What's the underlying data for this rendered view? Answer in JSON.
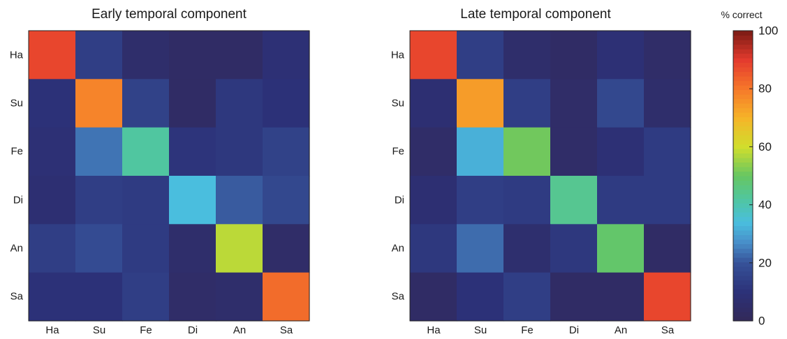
{
  "chart_data": [
    {
      "type": "heatmap",
      "title": "Early temporal component",
      "xlabel": "",
      "ylabel": "",
      "rows": [
        "Ha",
        "Su",
        "Fe",
        "Di",
        "An",
        "Sa"
      ],
      "columns": [
        "Ha",
        "Su",
        "Fe",
        "Di",
        "An",
        "Sa"
      ],
      "values": [
        [
          88,
          14,
          6,
          4,
          4,
          9
        ],
        [
          10,
          78,
          15,
          4,
          12,
          10
        ],
        [
          9,
          24,
          42,
          11,
          12,
          15
        ],
        [
          8,
          14,
          13,
          34,
          21,
          17
        ],
        [
          14,
          18,
          13,
          6,
          58,
          5
        ],
        [
          10,
          10,
          14,
          5,
          6,
          82
        ]
      ],
      "value_range": [
        0,
        100
      ]
    },
    {
      "type": "heatmap",
      "title": "Late temporal component",
      "xlabel": "",
      "ylabel": "",
      "rows": [
        "Ha",
        "Su",
        "Fe",
        "Di",
        "An",
        "Sa"
      ],
      "columns": [
        "Ha",
        "Su",
        "Fe",
        "Di",
        "An",
        "Sa"
      ],
      "values": [
        [
          88,
          14,
          6,
          4,
          9,
          5
        ],
        [
          8,
          74,
          14,
          5,
          17,
          6
        ],
        [
          5,
          32,
          51,
          5,
          9,
          13
        ],
        [
          8,
          14,
          13,
          44,
          13,
          13
        ],
        [
          12,
          23,
          7,
          12,
          49,
          4
        ],
        [
          4,
          10,
          14,
          4,
          4,
          88
        ]
      ],
      "value_range": [
        0,
        100
      ]
    }
  ],
  "colorbar": {
    "label": "% correct",
    "min": 0,
    "max": 100,
    "ticks": [
      0,
      20,
      40,
      60,
      80,
      100
    ],
    "colormap": "jet-like"
  }
}
